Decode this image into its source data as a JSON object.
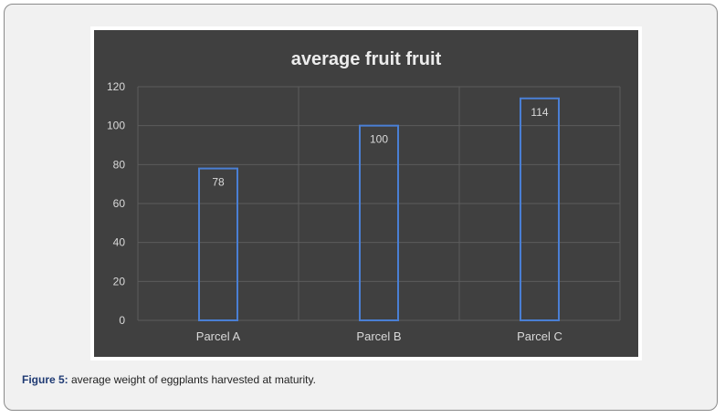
{
  "chart_data": {
    "type": "bar",
    "title": "average fruit  fruit",
    "categories": [
      "Parcel A",
      "Parcel B",
      "Parcel C"
    ],
    "values": [
      78,
      100,
      114
    ],
    "ylim": [
      0,
      120
    ],
    "yticks": [
      0,
      20,
      40,
      60,
      80,
      100,
      120
    ],
    "xlabel": "",
    "ylabel": "",
    "grid": true,
    "bar_fill": "none",
    "bar_outline_color": "#4a7fd4",
    "background_color": "#404040",
    "gridline_color": "#5c5c5c",
    "text_color": "#d9d9d9"
  },
  "caption": {
    "label": "Figure 5:",
    "text": " average weight of eggplants harvested at maturity."
  }
}
